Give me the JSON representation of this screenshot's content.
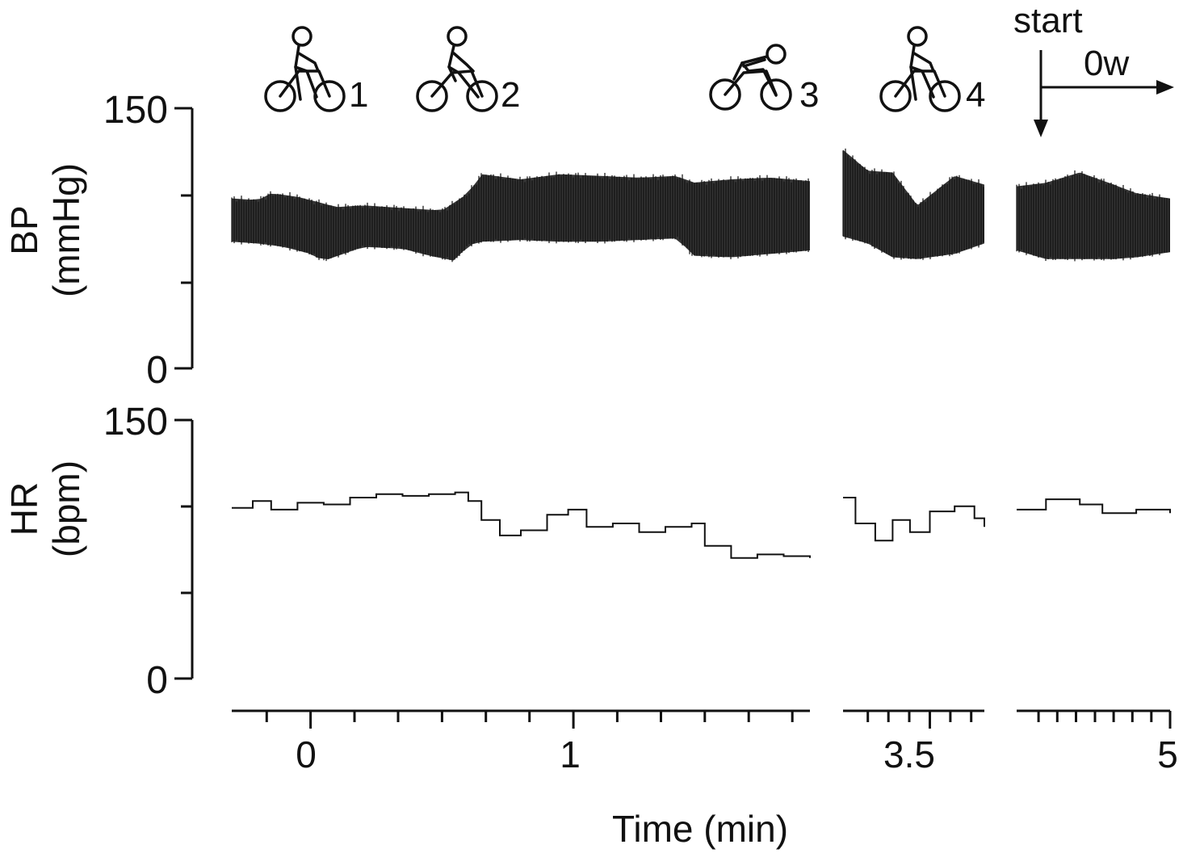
{
  "chart_data": [
    {
      "type": "line",
      "panel": "bp",
      "ylabel": "BP",
      "yunit": "(mmHg)",
      "ylim": [
        0,
        150
      ],
      "ytick_labels": [
        "150",
        "0"
      ],
      "minor_yticks": [
        50,
        100
      ],
      "render": "band",
      "series": [
        {
          "name": "BP upper envelope",
          "segments": [
            [
              [
                -0.3,
                98
              ],
              [
                -0.2,
                97
              ],
              [
                -0.15,
                101
              ],
              [
                -0.05,
                99
              ],
              [
                0,
                97
              ],
              [
                0.1,
                93
              ],
              [
                0.2,
                94
              ],
              [
                0.3,
                93
              ],
              [
                0.4,
                92
              ],
              [
                0.5,
                91
              ],
              [
                0.55,
                96
              ],
              [
                0.6,
                101
              ],
              [
                0.65,
                112
              ],
              [
                0.8,
                109
              ],
              [
                0.95,
                112
              ],
              [
                1.1,
                111
              ],
              [
                1.25,
                110
              ],
              [
                1.4,
                111
              ],
              [
                1.45,
                107
              ],
              [
                1.6,
                109
              ],
              [
                1.75,
                110
              ],
              [
                1.9,
                108
              ]
            ],
            [
              [
                3.15,
                126
              ],
              [
                3.25,
                114
              ],
              [
                3.35,
                113
              ],
              [
                3.45,
                94
              ],
              [
                3.6,
                111
              ],
              [
                3.72,
                106
              ]
            ],
            [
              [
                4.32,
                105
              ],
              [
                4.45,
                107
              ],
              [
                4.6,
                113
              ],
              [
                4.75,
                106
              ],
              [
                4.85,
                101
              ],
              [
                5.0,
                98
              ]
            ]
          ]
        },
        {
          "name": "BP lower envelope",
          "segments": [
            [
              [
                -0.3,
                73
              ],
              [
                -0.2,
                72
              ],
              [
                -0.1,
                70
              ],
              [
                0,
                66
              ],
              [
                0.05,
                62
              ],
              [
                0.2,
                70
              ],
              [
                0.35,
                69
              ],
              [
                0.45,
                65
              ],
              [
                0.55,
                62
              ],
              [
                0.6,
                71
              ],
              [
                0.65,
                73
              ],
              [
                0.8,
                74
              ],
              [
                0.95,
                73
              ],
              [
                1.1,
                73
              ],
              [
                1.25,
                74
              ],
              [
                1.4,
                75
              ],
              [
                1.45,
                65
              ],
              [
                1.6,
                64
              ],
              [
                1.75,
                66
              ],
              [
                1.9,
                68
              ]
            ],
            [
              [
                3.15,
                76
              ],
              [
                3.25,
                72
              ],
              [
                3.35,
                64
              ],
              [
                3.45,
                63
              ],
              [
                3.6,
                66
              ],
              [
                3.72,
                72
              ]
            ],
            [
              [
                4.32,
                68
              ],
              [
                4.45,
                63
              ],
              [
                4.6,
                63
              ],
              [
                4.75,
                63
              ],
              [
                4.85,
                64
              ],
              [
                5.0,
                67
              ]
            ]
          ]
        }
      ]
    },
    {
      "type": "line",
      "panel": "hr",
      "ylabel": "HR",
      "yunit": "(bpm)",
      "ylim": [
        0,
        150
      ],
      "ytick_labels": [
        "150",
        "0"
      ],
      "minor_yticks": [
        50,
        100
      ],
      "render": "step",
      "series": [
        {
          "name": "HR",
          "segments": [
            [
              [
                -0.3,
                99
              ],
              [
                -0.22,
                103
              ],
              [
                -0.15,
                98
              ],
              [
                -0.05,
                102
              ],
              [
                0.05,
                101
              ],
              [
                0.15,
                105
              ],
              [
                0.25,
                107
              ],
              [
                0.35,
                106
              ],
              [
                0.45,
                107
              ],
              [
                0.55,
                108
              ],
              [
                0.6,
                103
              ],
              [
                0.65,
                92
              ],
              [
                0.72,
                83
              ],
              [
                0.8,
                86
              ],
              [
                0.9,
                95
              ],
              [
                0.98,
                98
              ],
              [
                1.05,
                88
              ],
              [
                1.15,
                90
              ],
              [
                1.25,
                85
              ],
              [
                1.35,
                88
              ],
              [
                1.45,
                90
              ],
              [
                1.5,
                77
              ],
              [
                1.6,
                70
              ],
              [
                1.7,
                72
              ],
              [
                1.8,
                71
              ],
              [
                1.9,
                70
              ]
            ],
            [
              [
                3.15,
                105
              ],
              [
                3.2,
                90
              ],
              [
                3.28,
                80
              ],
              [
                3.35,
                92
              ],
              [
                3.42,
                85
              ],
              [
                3.5,
                97
              ],
              [
                3.6,
                100
              ],
              [
                3.68,
                93
              ],
              [
                3.72,
                88
              ]
            ],
            [
              [
                4.32,
                98
              ],
              [
                4.45,
                104
              ],
              [
                4.6,
                101
              ],
              [
                4.7,
                96
              ],
              [
                4.85,
                98
              ],
              [
                5.0,
                96
              ]
            ]
          ]
        }
      ]
    }
  ],
  "x_axis": {
    "label": "Time (min)",
    "tick_labels": [
      "0",
      "1",
      "3.5",
      "5"
    ],
    "segments": [
      {
        "range": [
          -0.3,
          1.9
        ],
        "major": [
          0,
          1
        ],
        "minor": [
          -0.167,
          0.167,
          0.333,
          0.5,
          0.667,
          0.833,
          1.167,
          1.333,
          1.5,
          1.667,
          1.833
        ]
      },
      {
        "range": [
          3.15,
          3.72
        ],
        "major": [
          3.5
        ],
        "minor": [
          3.25,
          3.333,
          3.417,
          3.583,
          3.667
        ]
      },
      {
        "range": [
          4.32,
          5.0
        ],
        "major": [
          5
        ],
        "minor": [
          4.417,
          4.5,
          4.583,
          4.667,
          4.75,
          4.833,
          4.917
        ]
      }
    ]
  },
  "markers": [
    {
      "label": "1",
      "icon": "cyclist-upright-icon"
    },
    {
      "label": "2",
      "icon": "cyclist-upright-icon"
    },
    {
      "label": "3",
      "icon": "cyclist-crouched-icon"
    },
    {
      "label": "4",
      "icon": "cyclist-upright-icon"
    }
  ],
  "start_annotation": {
    "start_label": "start",
    "workload_label": "0w"
  },
  "colors": {
    "ink": "#111111",
    "background": "#ffffff"
  }
}
